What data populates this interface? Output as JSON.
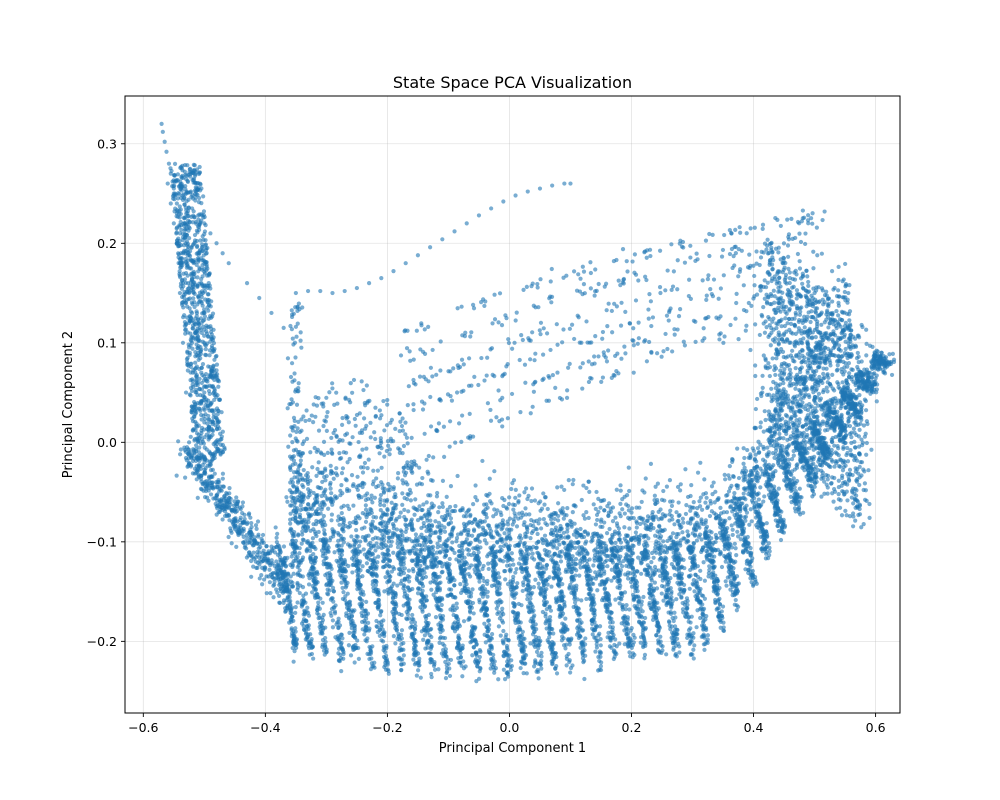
{
  "chart_data": {
    "type": "scatter",
    "title": "State Space PCA Visualization",
    "xlabel": "Principal Component 1",
    "ylabel": "Principal Component 2",
    "xlim": [
      -0.63,
      0.64
    ],
    "ylim": [
      -0.272,
      0.348
    ],
    "xticks": [
      -0.6,
      -0.4,
      -0.2,
      0.0,
      0.2,
      0.4,
      0.6
    ],
    "xtick_labels": [
      "−0.6",
      "−0.4",
      "−0.2",
      "0.0",
      "0.2",
      "0.4",
      "0.6"
    ],
    "yticks": [
      -0.2,
      -0.1,
      0.0,
      0.1,
      0.2,
      0.3
    ],
    "ytick_labels": [
      "−0.2",
      "−0.1",
      "0.0",
      "0.1",
      "0.2",
      "0.3"
    ],
    "grid": true,
    "marker_color": "#1f77b4",
    "marker_alpha": 0.6,
    "point_groups": [
      {
        "name_hint": "left-vertical-band-top",
        "x": [
          -0.57,
          -0.568,
          -0.565,
          -0.562,
          -0.558,
          -0.555,
          -0.552,
          -0.55,
          -0.548,
          -0.545
        ],
        "y": [
          0.32,
          0.312,
          0.302,
          0.292,
          0.28,
          0.27,
          0.262,
          0.255,
          0.248,
          0.24
        ]
      },
      {
        "name_hint": "left-vertical-band",
        "x": [
          -0.56,
          -0.555,
          -0.55,
          -0.545,
          -0.54,
          -0.535,
          -0.53,
          -0.525,
          -0.52,
          -0.515,
          -0.51,
          -0.505,
          -0.5,
          -0.55,
          -0.545,
          -0.54,
          -0.535,
          -0.53,
          -0.525,
          -0.52,
          -0.515,
          -0.51,
          -0.505,
          -0.5,
          -0.545,
          -0.54,
          -0.535,
          -0.53,
          -0.525,
          -0.52,
          -0.515,
          -0.51,
          -0.505,
          -0.5
        ],
        "y": [
          0.26,
          0.24,
          0.22,
          0.2,
          0.18,
          0.16,
          0.14,
          0.12,
          0.1,
          0.08,
          0.06,
          0.04,
          0.02,
          0.25,
          0.23,
          0.21,
          0.19,
          0.17,
          0.15,
          0.13,
          0.11,
          0.09,
          0.07,
          0.05,
          0.2,
          0.15,
          0.1,
          0.05,
          0.0,
          0.03,
          0.07,
          0.12,
          0.16,
          0.1
        ]
      },
      {
        "name_hint": "left-diagonal-tail",
        "x": [
          -0.52,
          -0.51,
          -0.5,
          -0.49,
          -0.48,
          -0.47,
          -0.46
        ],
        "y": [
          0.235,
          0.228,
          0.22,
          0.21,
          0.2,
          0.19,
          0.18
        ]
      },
      {
        "name_hint": "upper-diagonal-line",
        "x": [
          -0.43,
          -0.41,
          -0.39,
          -0.37,
          -0.35,
          -0.33,
          -0.31,
          -0.29,
          -0.27,
          -0.25,
          -0.23,
          -0.21,
          -0.19,
          -0.17,
          -0.15,
          -0.13,
          -0.11,
          -0.09,
          -0.07,
          -0.05,
          -0.03,
          -0.01,
          0.01,
          0.03,
          0.05,
          0.07,
          0.09,
          0.1
        ],
        "y": [
          0.16,
          0.145,
          0.13,
          0.115,
          0.15,
          0.152,
          0.152,
          0.15,
          0.152,
          0.155,
          0.16,
          0.165,
          0.172,
          0.18,
          0.188,
          0.196,
          0.204,
          0.212,
          0.22,
          0.228,
          0.235,
          0.242,
          0.248,
          0.252,
          0.255,
          0.258,
          0.26,
          0.26
        ]
      }
    ]
  }
}
